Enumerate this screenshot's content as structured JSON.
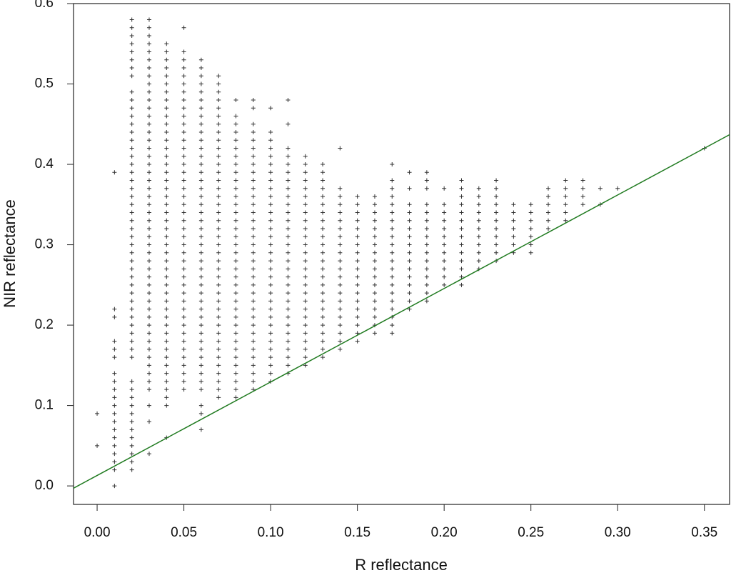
{
  "chart_data": {
    "type": "scatter",
    "x_label": "R reflectance",
    "y_label": "NIR reflectance",
    "xlim": [
      -0.0136,
      0.3645
    ],
    "ylim": [
      -0.023,
      0.6
    ],
    "xticks": [
      {
        "value": 0,
        "label": "0.00"
      },
      {
        "value": 0.05,
        "label": "0.05"
      },
      {
        "value": 0.1,
        "label": "0.10"
      },
      {
        "value": 0.15,
        "label": "0.15"
      },
      {
        "value": 0.2,
        "label": "0.20"
      },
      {
        "value": 0.25,
        "label": "0.25"
      },
      {
        "value": 0.3,
        "label": "0.30"
      },
      {
        "value": 0.35,
        "label": "0.35"
      }
    ],
    "yticks": [
      {
        "value": 0,
        "label": "0.0"
      },
      {
        "value": 0.1,
        "label": "0.1"
      },
      {
        "value": 0.2,
        "label": "0.2"
      },
      {
        "value": 0.3,
        "label": "0.3"
      },
      {
        "value": 0.4,
        "label": "0.4"
      },
      {
        "value": 0.5,
        "label": "0.5"
      },
      {
        "value": 0.6,
        "label": "0.6"
      }
    ],
    "color": "#333333",
    "fit_line": {
      "color": "#1f7a1f",
      "slope": 1.163,
      "intercept": 0.013
    },
    "groups": [
      {
        "x": 0,
        "y": [
          0.05,
          0.09
        ]
      },
      {
        "x": 0.01,
        "y": [
          0,
          0.02,
          0.03,
          0.04,
          0.05,
          0.06,
          0.07,
          0.08,
          0.09,
          0.1,
          0.11,
          0.12,
          0.13,
          0.14,
          0.16,
          0.17,
          0.18,
          0.21,
          0.22,
          0.39
        ]
      },
      {
        "x": 0.02,
        "y": [
          0.02,
          0.03,
          0.04,
          0.05,
          0.06,
          0.07,
          0.08,
          0.09,
          0.1,
          0.11,
          0.12,
          0.13,
          0.16,
          0.17,
          0.18,
          0.19,
          0.2,
          0.21,
          0.22,
          0.23,
          0.24,
          0.25,
          0.26,
          0.27,
          0.28,
          0.29,
          0.3,
          0.31,
          0.32,
          0.33,
          0.34,
          0.35,
          0.36,
          0.37,
          0.38,
          0.39,
          0.4,
          0.41,
          0.42,
          0.43,
          0.44,
          0.45,
          0.46,
          0.47,
          0.48,
          0.49,
          0.51,
          0.52,
          0.53,
          0.54,
          0.55,
          0.56,
          0.57,
          0.58
        ]
      },
      {
        "x": 0.03,
        "y": [
          0.04,
          0.08,
          0.1,
          0.12,
          0.13,
          0.14,
          0.15,
          0.16,
          0.17,
          0.18,
          0.19,
          0.2,
          0.21,
          0.22,
          0.23,
          0.24,
          0.25,
          0.26,
          0.27,
          0.28,
          0.29,
          0.3,
          0.31,
          0.32,
          0.33,
          0.34,
          0.35,
          0.36,
          0.37,
          0.38,
          0.39,
          0.4,
          0.41,
          0.42,
          0.43,
          0.44,
          0.45,
          0.46,
          0.47,
          0.48,
          0.49,
          0.5,
          0.51,
          0.52,
          0.53,
          0.54,
          0.55,
          0.56,
          0.57,
          0.58
        ]
      },
      {
        "x": 0.04,
        "y": [
          0.06,
          0.1,
          0.11,
          0.12,
          0.13,
          0.14,
          0.15,
          0.16,
          0.17,
          0.18,
          0.19,
          0.2,
          0.21,
          0.22,
          0.23,
          0.24,
          0.25,
          0.26,
          0.27,
          0.28,
          0.29,
          0.3,
          0.31,
          0.32,
          0.33,
          0.34,
          0.35,
          0.36,
          0.37,
          0.38,
          0.39,
          0.4,
          0.41,
          0.42,
          0.43,
          0.44,
          0.45,
          0.46,
          0.47,
          0.48,
          0.49,
          0.5,
          0.51,
          0.52,
          0.53,
          0.54,
          0.55
        ]
      },
      {
        "x": 0.05,
        "y": [
          0.12,
          0.13,
          0.14,
          0.15,
          0.16,
          0.17,
          0.18,
          0.19,
          0.2,
          0.21,
          0.22,
          0.23,
          0.24,
          0.25,
          0.26,
          0.27,
          0.28,
          0.29,
          0.3,
          0.31,
          0.32,
          0.33,
          0.34,
          0.35,
          0.36,
          0.37,
          0.38,
          0.39,
          0.4,
          0.41,
          0.42,
          0.43,
          0.44,
          0.45,
          0.46,
          0.47,
          0.48,
          0.49,
          0.5,
          0.51,
          0.52,
          0.53,
          0.54,
          0.57
        ]
      },
      {
        "x": 0.06,
        "y": [
          0.07,
          0.09,
          0.1,
          0.12,
          0.13,
          0.14,
          0.15,
          0.16,
          0.17,
          0.18,
          0.19,
          0.2,
          0.21,
          0.22,
          0.23,
          0.24,
          0.25,
          0.26,
          0.27,
          0.28,
          0.29,
          0.3,
          0.31,
          0.32,
          0.33,
          0.34,
          0.35,
          0.36,
          0.37,
          0.38,
          0.39,
          0.4,
          0.41,
          0.42,
          0.43,
          0.44,
          0.45,
          0.46,
          0.47,
          0.48,
          0.49,
          0.5,
          0.51,
          0.52,
          0.53
        ]
      },
      {
        "x": 0.07,
        "y": [
          0.11,
          0.12,
          0.13,
          0.14,
          0.15,
          0.16,
          0.17,
          0.18,
          0.19,
          0.2,
          0.21,
          0.22,
          0.23,
          0.24,
          0.25,
          0.26,
          0.27,
          0.28,
          0.29,
          0.3,
          0.31,
          0.32,
          0.33,
          0.34,
          0.35,
          0.36,
          0.37,
          0.38,
          0.39,
          0.4,
          0.41,
          0.42,
          0.43,
          0.44,
          0.45,
          0.46,
          0.47,
          0.48,
          0.49,
          0.5,
          0.51
        ]
      },
      {
        "x": 0.08,
        "y": [
          0.11,
          0.12,
          0.13,
          0.14,
          0.15,
          0.16,
          0.17,
          0.18,
          0.19,
          0.2,
          0.21,
          0.22,
          0.23,
          0.24,
          0.25,
          0.26,
          0.27,
          0.28,
          0.29,
          0.3,
          0.31,
          0.32,
          0.33,
          0.34,
          0.35,
          0.36,
          0.37,
          0.38,
          0.39,
          0.4,
          0.41,
          0.42,
          0.43,
          0.44,
          0.45,
          0.46,
          0.48
        ]
      },
      {
        "x": 0.09,
        "y": [
          0.12,
          0.13,
          0.14,
          0.15,
          0.16,
          0.17,
          0.18,
          0.19,
          0.2,
          0.21,
          0.22,
          0.23,
          0.24,
          0.25,
          0.26,
          0.27,
          0.28,
          0.29,
          0.3,
          0.31,
          0.32,
          0.33,
          0.34,
          0.35,
          0.36,
          0.37,
          0.38,
          0.39,
          0.4,
          0.41,
          0.42,
          0.43,
          0.44,
          0.45,
          0.47,
          0.48
        ]
      },
      {
        "x": 0.1,
        "y": [
          0.13,
          0.14,
          0.15,
          0.16,
          0.17,
          0.18,
          0.19,
          0.2,
          0.21,
          0.22,
          0.23,
          0.24,
          0.25,
          0.26,
          0.27,
          0.28,
          0.29,
          0.3,
          0.31,
          0.32,
          0.33,
          0.34,
          0.35,
          0.36,
          0.37,
          0.38,
          0.39,
          0.4,
          0.41,
          0.42,
          0.43,
          0.44,
          0.47
        ]
      },
      {
        "x": 0.11,
        "y": [
          0.14,
          0.15,
          0.16,
          0.17,
          0.18,
          0.19,
          0.2,
          0.21,
          0.22,
          0.23,
          0.24,
          0.25,
          0.26,
          0.27,
          0.28,
          0.29,
          0.3,
          0.31,
          0.32,
          0.33,
          0.34,
          0.35,
          0.36,
          0.37,
          0.38,
          0.39,
          0.4,
          0.41,
          0.42,
          0.45,
          0.48
        ]
      },
      {
        "x": 0.12,
        "y": [
          0.15,
          0.16,
          0.17,
          0.18,
          0.19,
          0.2,
          0.21,
          0.22,
          0.23,
          0.24,
          0.25,
          0.26,
          0.27,
          0.28,
          0.29,
          0.3,
          0.31,
          0.32,
          0.33,
          0.34,
          0.35,
          0.36,
          0.37,
          0.38,
          0.39,
          0.4,
          0.41
        ]
      },
      {
        "x": 0.13,
        "y": [
          0.16,
          0.17,
          0.18,
          0.19,
          0.2,
          0.21,
          0.22,
          0.23,
          0.24,
          0.25,
          0.26,
          0.27,
          0.28,
          0.29,
          0.3,
          0.31,
          0.32,
          0.33,
          0.34,
          0.35,
          0.36,
          0.37,
          0.38,
          0.39,
          0.4
        ]
      },
      {
        "x": 0.14,
        "y": [
          0.17,
          0.18,
          0.19,
          0.2,
          0.21,
          0.22,
          0.23,
          0.24,
          0.25,
          0.26,
          0.27,
          0.28,
          0.29,
          0.3,
          0.31,
          0.32,
          0.33,
          0.34,
          0.35,
          0.36,
          0.37,
          0.42
        ]
      },
      {
        "x": 0.15,
        "y": [
          0.18,
          0.19,
          0.2,
          0.21,
          0.22,
          0.23,
          0.24,
          0.25,
          0.26,
          0.27,
          0.28,
          0.29,
          0.3,
          0.31,
          0.32,
          0.33,
          0.34,
          0.35,
          0.36
        ]
      },
      {
        "x": 0.16,
        "y": [
          0.19,
          0.2,
          0.21,
          0.22,
          0.23,
          0.24,
          0.25,
          0.26,
          0.27,
          0.28,
          0.29,
          0.3,
          0.31,
          0.32,
          0.33,
          0.34,
          0.35,
          0.36
        ]
      },
      {
        "x": 0.17,
        "y": [
          0.19,
          0.2,
          0.21,
          0.22,
          0.23,
          0.24,
          0.25,
          0.26,
          0.27,
          0.28,
          0.29,
          0.3,
          0.31,
          0.32,
          0.33,
          0.34,
          0.35,
          0.36,
          0.37,
          0.38,
          0.4
        ]
      },
      {
        "x": 0.18,
        "y": [
          0.22,
          0.23,
          0.24,
          0.25,
          0.26,
          0.27,
          0.28,
          0.29,
          0.3,
          0.31,
          0.32,
          0.33,
          0.34,
          0.35,
          0.37,
          0.39
        ]
      },
      {
        "x": 0.19,
        "y": [
          0.23,
          0.24,
          0.25,
          0.26,
          0.27,
          0.28,
          0.29,
          0.3,
          0.31,
          0.32,
          0.33,
          0.34,
          0.35,
          0.37,
          0.38,
          0.39
        ]
      },
      {
        "x": 0.2,
        "y": [
          0.25,
          0.26,
          0.27,
          0.28,
          0.29,
          0.3,
          0.31,
          0.32,
          0.33,
          0.34,
          0.35,
          0.37
        ]
      },
      {
        "x": 0.21,
        "y": [
          0.25,
          0.26,
          0.27,
          0.28,
          0.29,
          0.3,
          0.31,
          0.32,
          0.33,
          0.34,
          0.35,
          0.36,
          0.37,
          0.38
        ]
      },
      {
        "x": 0.22,
        "y": [
          0.27,
          0.28,
          0.29,
          0.3,
          0.31,
          0.32,
          0.33,
          0.34,
          0.35,
          0.36,
          0.37
        ]
      },
      {
        "x": 0.23,
        "y": [
          0.28,
          0.29,
          0.3,
          0.31,
          0.32,
          0.33,
          0.34,
          0.35,
          0.36,
          0.37,
          0.38
        ]
      },
      {
        "x": 0.24,
        "y": [
          0.29,
          0.3,
          0.31,
          0.32,
          0.33,
          0.34,
          0.35
        ]
      },
      {
        "x": 0.25,
        "y": [
          0.29,
          0.3,
          0.31,
          0.32,
          0.33,
          0.34,
          0.35
        ]
      },
      {
        "x": 0.26,
        "y": [
          0.32,
          0.33,
          0.34,
          0.35,
          0.36,
          0.37
        ]
      },
      {
        "x": 0.27,
        "y": [
          0.33,
          0.34,
          0.35,
          0.36,
          0.37,
          0.38
        ]
      },
      {
        "x": 0.28,
        "y": [
          0.35,
          0.36,
          0.37,
          0.38
        ]
      },
      {
        "x": 0.29,
        "y": [
          0.35,
          0.37
        ]
      },
      {
        "x": 0.3,
        "y": [
          0.37
        ]
      },
      {
        "x": 0.35,
        "y": [
          0.42
        ]
      }
    ]
  }
}
